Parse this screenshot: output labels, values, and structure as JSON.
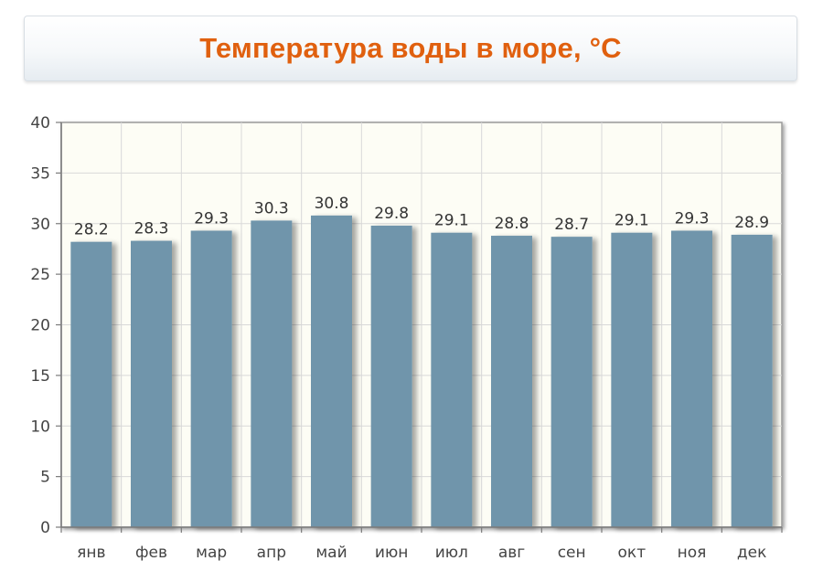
{
  "title": "Температура воды в море, °C",
  "colors": {
    "title": "#e0600f",
    "bar": "#7095ab",
    "plot_background": "#fdfdf5",
    "grid": "#d9d9d9",
    "axis": "#7b7b7b"
  },
  "chart_data": {
    "type": "bar",
    "title": "Температура воды в море, °C",
    "categories": [
      "янв",
      "фев",
      "мар",
      "апр",
      "май",
      "июн",
      "июл",
      "авг",
      "сен",
      "окт",
      "ноя",
      "дек"
    ],
    "values": [
      28.2,
      28.3,
      29.3,
      30.3,
      30.8,
      29.8,
      29.1,
      28.8,
      28.7,
      29.1,
      29.3,
      28.9
    ],
    "data_labels": [
      "28.2",
      "28.3",
      "29.3",
      "30.3",
      "30.8",
      "29.8",
      "29.1",
      "28.8",
      "28.7",
      "29.1",
      "29.3",
      "28.9"
    ],
    "ylim": [
      0,
      40
    ],
    "yticks": [
      0,
      5,
      10,
      15,
      20,
      25,
      30,
      35,
      40
    ],
    "grid": true,
    "legend": false,
    "xlabel": "",
    "ylabel": ""
  }
}
